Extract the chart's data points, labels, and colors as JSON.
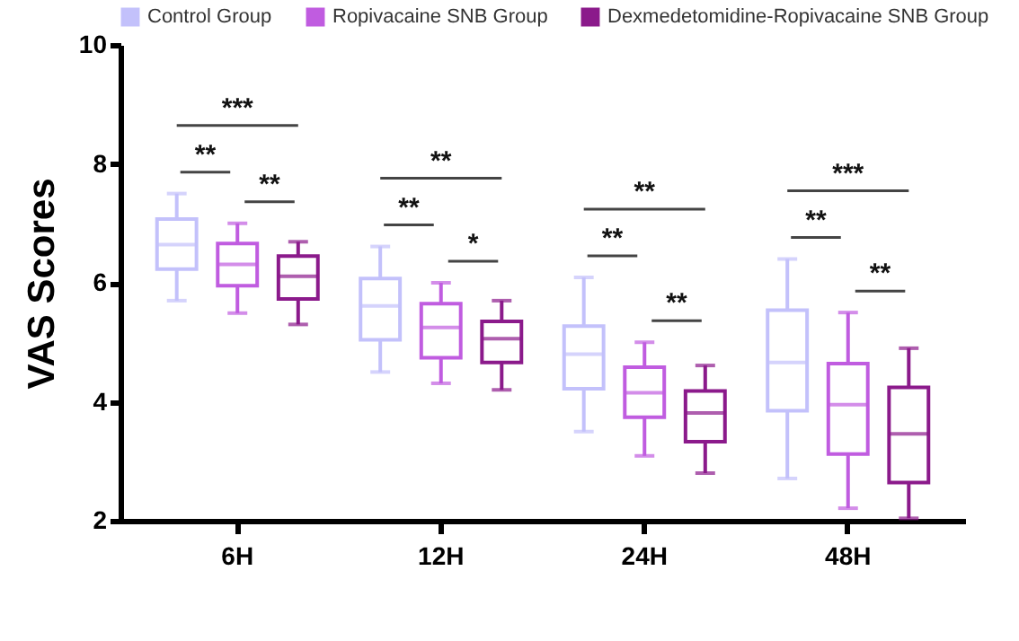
{
  "chart_data": {
    "type": "box",
    "ylabel": "VAS Scores",
    "categories": [
      "6H",
      "12H",
      "24H",
      "48H"
    ],
    "ylim": [
      2,
      10
    ],
    "yticks": [
      2,
      4,
      6,
      8,
      10
    ],
    "legend": "top",
    "grid": false,
    "series": [
      {
        "name": "Control Group",
        "color": "#c3c1fb",
        "boxes": [
          {
            "low": 5.7,
            "q1": 6.23,
            "median": 6.64,
            "q3": 7.07,
            "high": 7.5
          },
          {
            "low": 4.5,
            "q1": 5.04,
            "median": 5.61,
            "q3": 6.07,
            "high": 6.61
          },
          {
            "low": 3.5,
            "q1": 4.22,
            "median": 4.8,
            "q3": 5.27,
            "high": 6.09
          },
          {
            "low": 2.71,
            "q1": 3.85,
            "median": 4.66,
            "q3": 5.54,
            "high": 6.4
          }
        ]
      },
      {
        "name": "Ropivacaine SNB Group",
        "color": "#c05ce0",
        "boxes": [
          {
            "low": 5.49,
            "q1": 5.95,
            "median": 6.31,
            "q3": 6.66,
            "high": 7.0
          },
          {
            "low": 4.31,
            "q1": 4.74,
            "median": 5.25,
            "q3": 5.65,
            "high": 6.0
          },
          {
            "low": 3.09,
            "q1": 3.74,
            "median": 4.15,
            "q3": 4.58,
            "high": 5.0
          },
          {
            "low": 2.21,
            "q1": 3.12,
            "median": 3.95,
            "q3": 4.64,
            "high": 5.5
          }
        ]
      },
      {
        "name": "Dexmedetomidine-Ropivacaine SNB Group",
        "color": "#8b1a8b",
        "boxes": [
          {
            "low": 5.3,
            "q1": 5.73,
            "median": 6.11,
            "q3": 6.45,
            "high": 6.69
          },
          {
            "low": 4.2,
            "q1": 4.66,
            "median": 5.06,
            "q3": 5.35,
            "high": 5.7
          },
          {
            "low": 2.8,
            "q1": 3.33,
            "median": 3.81,
            "q3": 4.18,
            "high": 4.61
          },
          {
            "low": 2.04,
            "q1": 2.64,
            "median": 3.46,
            "q3": 4.24,
            "high": 4.9
          }
        ]
      }
    ],
    "annotations": [
      "***",
      "**",
      "**",
      "**",
      "**",
      "*",
      "**",
      "**",
      "**",
      "***",
      "**",
      "**"
    ]
  }
}
